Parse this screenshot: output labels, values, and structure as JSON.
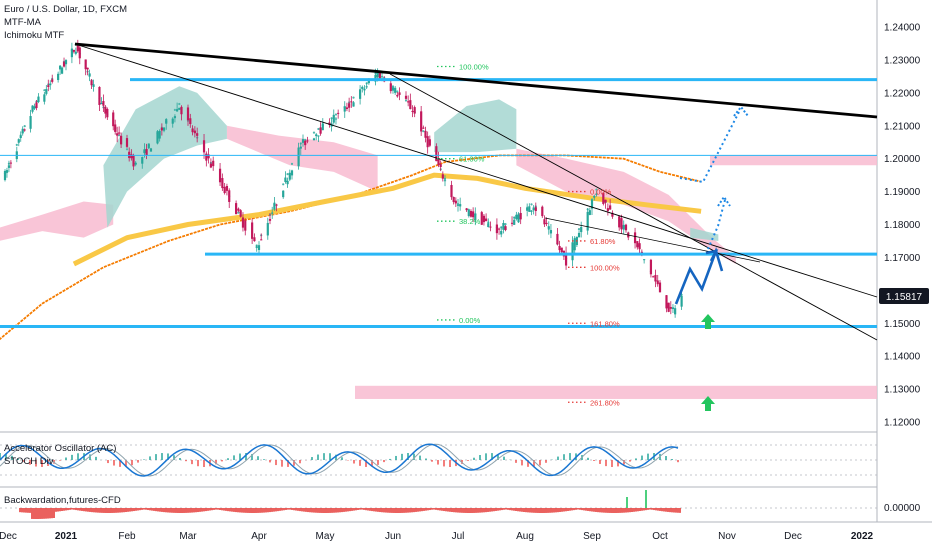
{
  "legend": {
    "symbol": "Euro / U.S. Dollar, 1D, FXCM",
    "indicator1": "MTF-MA",
    "indicator2": "Ichimoku MTF"
  },
  "panes": {
    "osc_label1": "Accelerator Oscillator (AC)",
    "osc_label2": "STOCH Div",
    "backwardation_label": "Backwardation,futures-CFD"
  },
  "price_badge": "1.15817",
  "colors": {
    "support_line": "#29b6f6",
    "trendline": "#000000",
    "ichimoku_bull_cloud": "#a5d6d0",
    "ichimoku_bear_cloud": "#f8bbd0",
    "ma_fast": "#f57c00",
    "ma_slow": "#f9c846",
    "bull_candle": "#26a69a",
    "bear_candle": "#c2185b",
    "projection": "#1565c0",
    "up_arrow": "#22c55e"
  },
  "chart_data": {
    "type": "candlestick",
    "title": "Euro / U.S. Dollar, 1D, FXCM",
    "x_ticks": [
      "Dec",
      "2021",
      "Feb",
      "Mar",
      "Apr",
      "May",
      "Jun",
      "Jul",
      "Aug",
      "Sep",
      "Oct",
      "Nov",
      "Dec",
      "2022"
    ],
    "y_ticks": [
      "1.24000",
      "1.23000",
      "1.22000",
      "1.21000",
      "1.20000",
      "1.19000",
      "1.18000",
      "1.17000",
      "1.15000",
      "1.14000",
      "1.13000",
      "1.12000"
    ],
    "ylim": [
      1.115,
      1.245
    ],
    "price_path": [
      {
        "date": "2020-12-01",
        "close": 1.195
      },
      {
        "date": "2020-12-15",
        "close": 1.215
      },
      {
        "date": "2021-01-06",
        "close": 1.234
      },
      {
        "date": "2021-01-20",
        "close": 1.215
      },
      {
        "date": "2021-02-05",
        "close": 1.198
      },
      {
        "date": "2021-02-25",
        "close": 1.216
      },
      {
        "date": "2021-03-15",
        "close": 1.193
      },
      {
        "date": "2021-03-31",
        "close": 1.173
      },
      {
        "date": "2021-04-20",
        "close": 1.204
      },
      {
        "date": "2021-05-10",
        "close": 1.215
      },
      {
        "date": "2021-05-25",
        "close": 1.226
      },
      {
        "date": "2021-06-10",
        "close": 1.215
      },
      {
        "date": "2021-06-30",
        "close": 1.186
      },
      {
        "date": "2021-07-20",
        "close": 1.178
      },
      {
        "date": "2021-08-05",
        "close": 1.186
      },
      {
        "date": "2021-08-20",
        "close": 1.169
      },
      {
        "date": "2021-09-03",
        "close": 1.19
      },
      {
        "date": "2021-09-22",
        "close": 1.172
      },
      {
        "date": "2021-10-06",
        "close": 1.153
      },
      {
        "date": "2021-10-11",
        "close": 1.158
      }
    ],
    "horizontal_levels": [
      1.224,
      1.201,
      1.171,
      1.149
    ],
    "resistance_zones": [
      [
        1.198,
        1.201
      ],
      [
        1.127,
        1.131
      ]
    ],
    "fib_labels": [
      {
        "text": "100.00%",
        "price": 1.228,
        "group": "green"
      },
      {
        "text": "61.80%",
        "price": 1.2,
        "group": "green"
      },
      {
        "text": "38.2%",
        "price": 1.181,
        "group": "green"
      },
      {
        "text": "0.00%",
        "price": 1.151,
        "group": "green"
      },
      {
        "text": "0.00%",
        "price": 1.19,
        "group": "red"
      },
      {
        "text": "61.80%",
        "price": 1.175,
        "group": "red"
      },
      {
        "text": "100.00%",
        "price": 1.167,
        "group": "red"
      },
      {
        "text": "161.80%",
        "price": 1.15,
        "group": "red"
      },
      {
        "text": "261.80%",
        "price": 1.126,
        "group": "red"
      }
    ],
    "backwardation_ticks": [
      "0.00000"
    ]
  }
}
